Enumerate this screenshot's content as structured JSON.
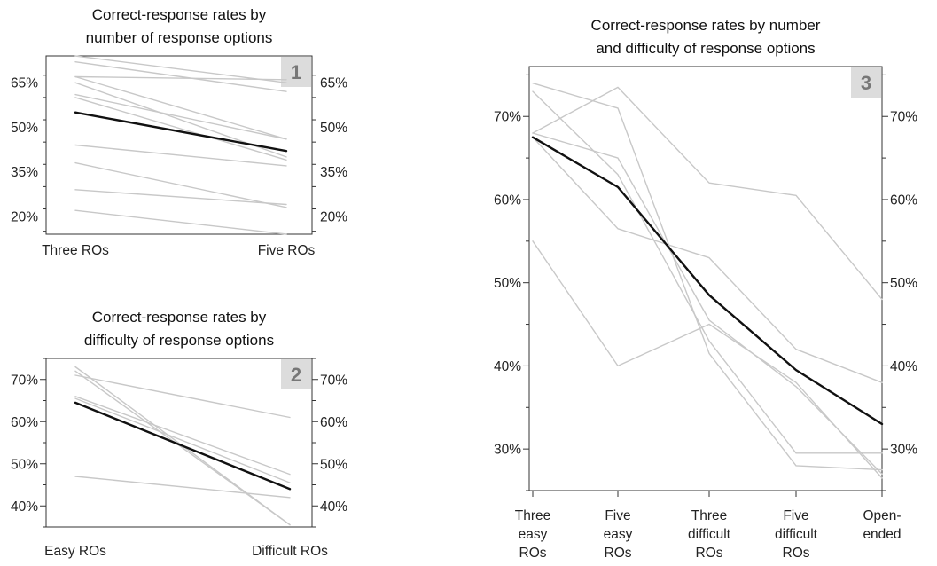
{
  "chart_data": [
    {
      "type": "line",
      "title": [
        "Correct-response rates by",
        "number of response options"
      ],
      "badge": "1",
      "categories": [
        "Three ROs",
        "Five ROs"
      ],
      "ylim": [
        14,
        74
      ],
      "yticks": [
        20,
        35,
        50,
        65
      ],
      "ytick_labels": [
        "20%",
        "35%",
        "50%",
        "65%"
      ],
      "series": [
        {
          "values": [
            74,
            65
          ],
          "color": "#c8c8c8"
        },
        {
          "values": [
            72,
            62
          ],
          "color": "#c8c8c8"
        },
        {
          "values": [
            67,
            66
          ],
          "color": "#c8c8c8"
        },
        {
          "values": [
            67,
            46
          ],
          "color": "#c8c8c8"
        },
        {
          "values": [
            65,
            40
          ],
          "color": "#c8c8c8"
        },
        {
          "values": [
            61,
            46
          ],
          "color": "#c8c8c8"
        },
        {
          "values": [
            60,
            39
          ],
          "color": "#c8c8c8"
        },
        {
          "values": [
            44,
            37
          ],
          "color": "#c8c8c8"
        },
        {
          "values": [
            38,
            23
          ],
          "color": "#c8c8c8"
        },
        {
          "values": [
            29,
            24
          ],
          "color": "#c8c8c8"
        },
        {
          "values": [
            22,
            14
          ],
          "color": "#c8c8c8"
        },
        {
          "values": [
            55,
            42
          ],
          "color": "#111111",
          "role": "mean"
        }
      ]
    },
    {
      "type": "line",
      "title": [
        "Correct-response rates by",
        "difficulty of response options"
      ],
      "badge": "2",
      "categories": [
        "Easy ROs",
        "Difficult ROs"
      ],
      "ylim": [
        35,
        75
      ],
      "yticks": [
        40,
        50,
        60,
        70
      ],
      "ytick_labels": [
        "40%",
        "50%",
        "60%",
        "70%"
      ],
      "series": [
        {
          "values": [
            73,
            35.5
          ],
          "color": "#c8c8c8"
        },
        {
          "values": [
            72,
            35.5
          ],
          "color": "#c8c8c8"
        },
        {
          "values": [
            71,
            61
          ],
          "color": "#c8c8c8"
        },
        {
          "values": [
            66,
            47.5
          ],
          "color": "#c8c8c8"
        },
        {
          "values": [
            65.5,
            45.5
          ],
          "color": "#c8c8c8"
        },
        {
          "values": [
            47,
            42
          ],
          "color": "#c8c8c8"
        },
        {
          "values": [
            64.5,
            44
          ],
          "color": "#111111",
          "role": "mean"
        }
      ]
    },
    {
      "type": "line",
      "title": [
        "Correct-response rates by number",
        "and difficulty of response options"
      ],
      "badge": "3",
      "categories": [
        [
          "Three",
          "easy",
          "ROs"
        ],
        [
          "Five",
          "easy",
          "ROs"
        ],
        [
          "Three",
          "difficult",
          "ROs"
        ],
        [
          "Five",
          "difficult",
          "ROs"
        ],
        [
          "Open-",
          "ended"
        ]
      ],
      "ylim": [
        25,
        76
      ],
      "yticks": [
        30,
        40,
        50,
        60,
        70
      ],
      "ytick_labels": [
        "30%",
        "40%",
        "50%",
        "60%",
        "70%"
      ],
      "series": [
        {
          "values": [
            74,
            71,
            41.5,
            28,
            27.5
          ],
          "color": "#c8c8c8"
        },
        {
          "values": [
            73,
            63,
            43,
            29.5,
            29.5
          ],
          "color": "#c8c8c8"
        },
        {
          "values": [
            68,
            73.5,
            62,
            60.5,
            48
          ],
          "color": "#c8c8c8"
        },
        {
          "values": [
            68,
            65,
            45.5,
            37.5,
            27
          ],
          "color": "#c8c8c8"
        },
        {
          "values": [
            67.5,
            56.5,
            53,
            42,
            38
          ],
          "color": "#c8c8c8"
        },
        {
          "values": [
            55,
            40,
            45,
            38,
            26.5
          ],
          "color": "#c8c8c8"
        },
        {
          "values": [
            67.5,
            61.5,
            48.5,
            39.5,
            33
          ],
          "color": "#111111",
          "role": "mean"
        }
      ]
    }
  ]
}
